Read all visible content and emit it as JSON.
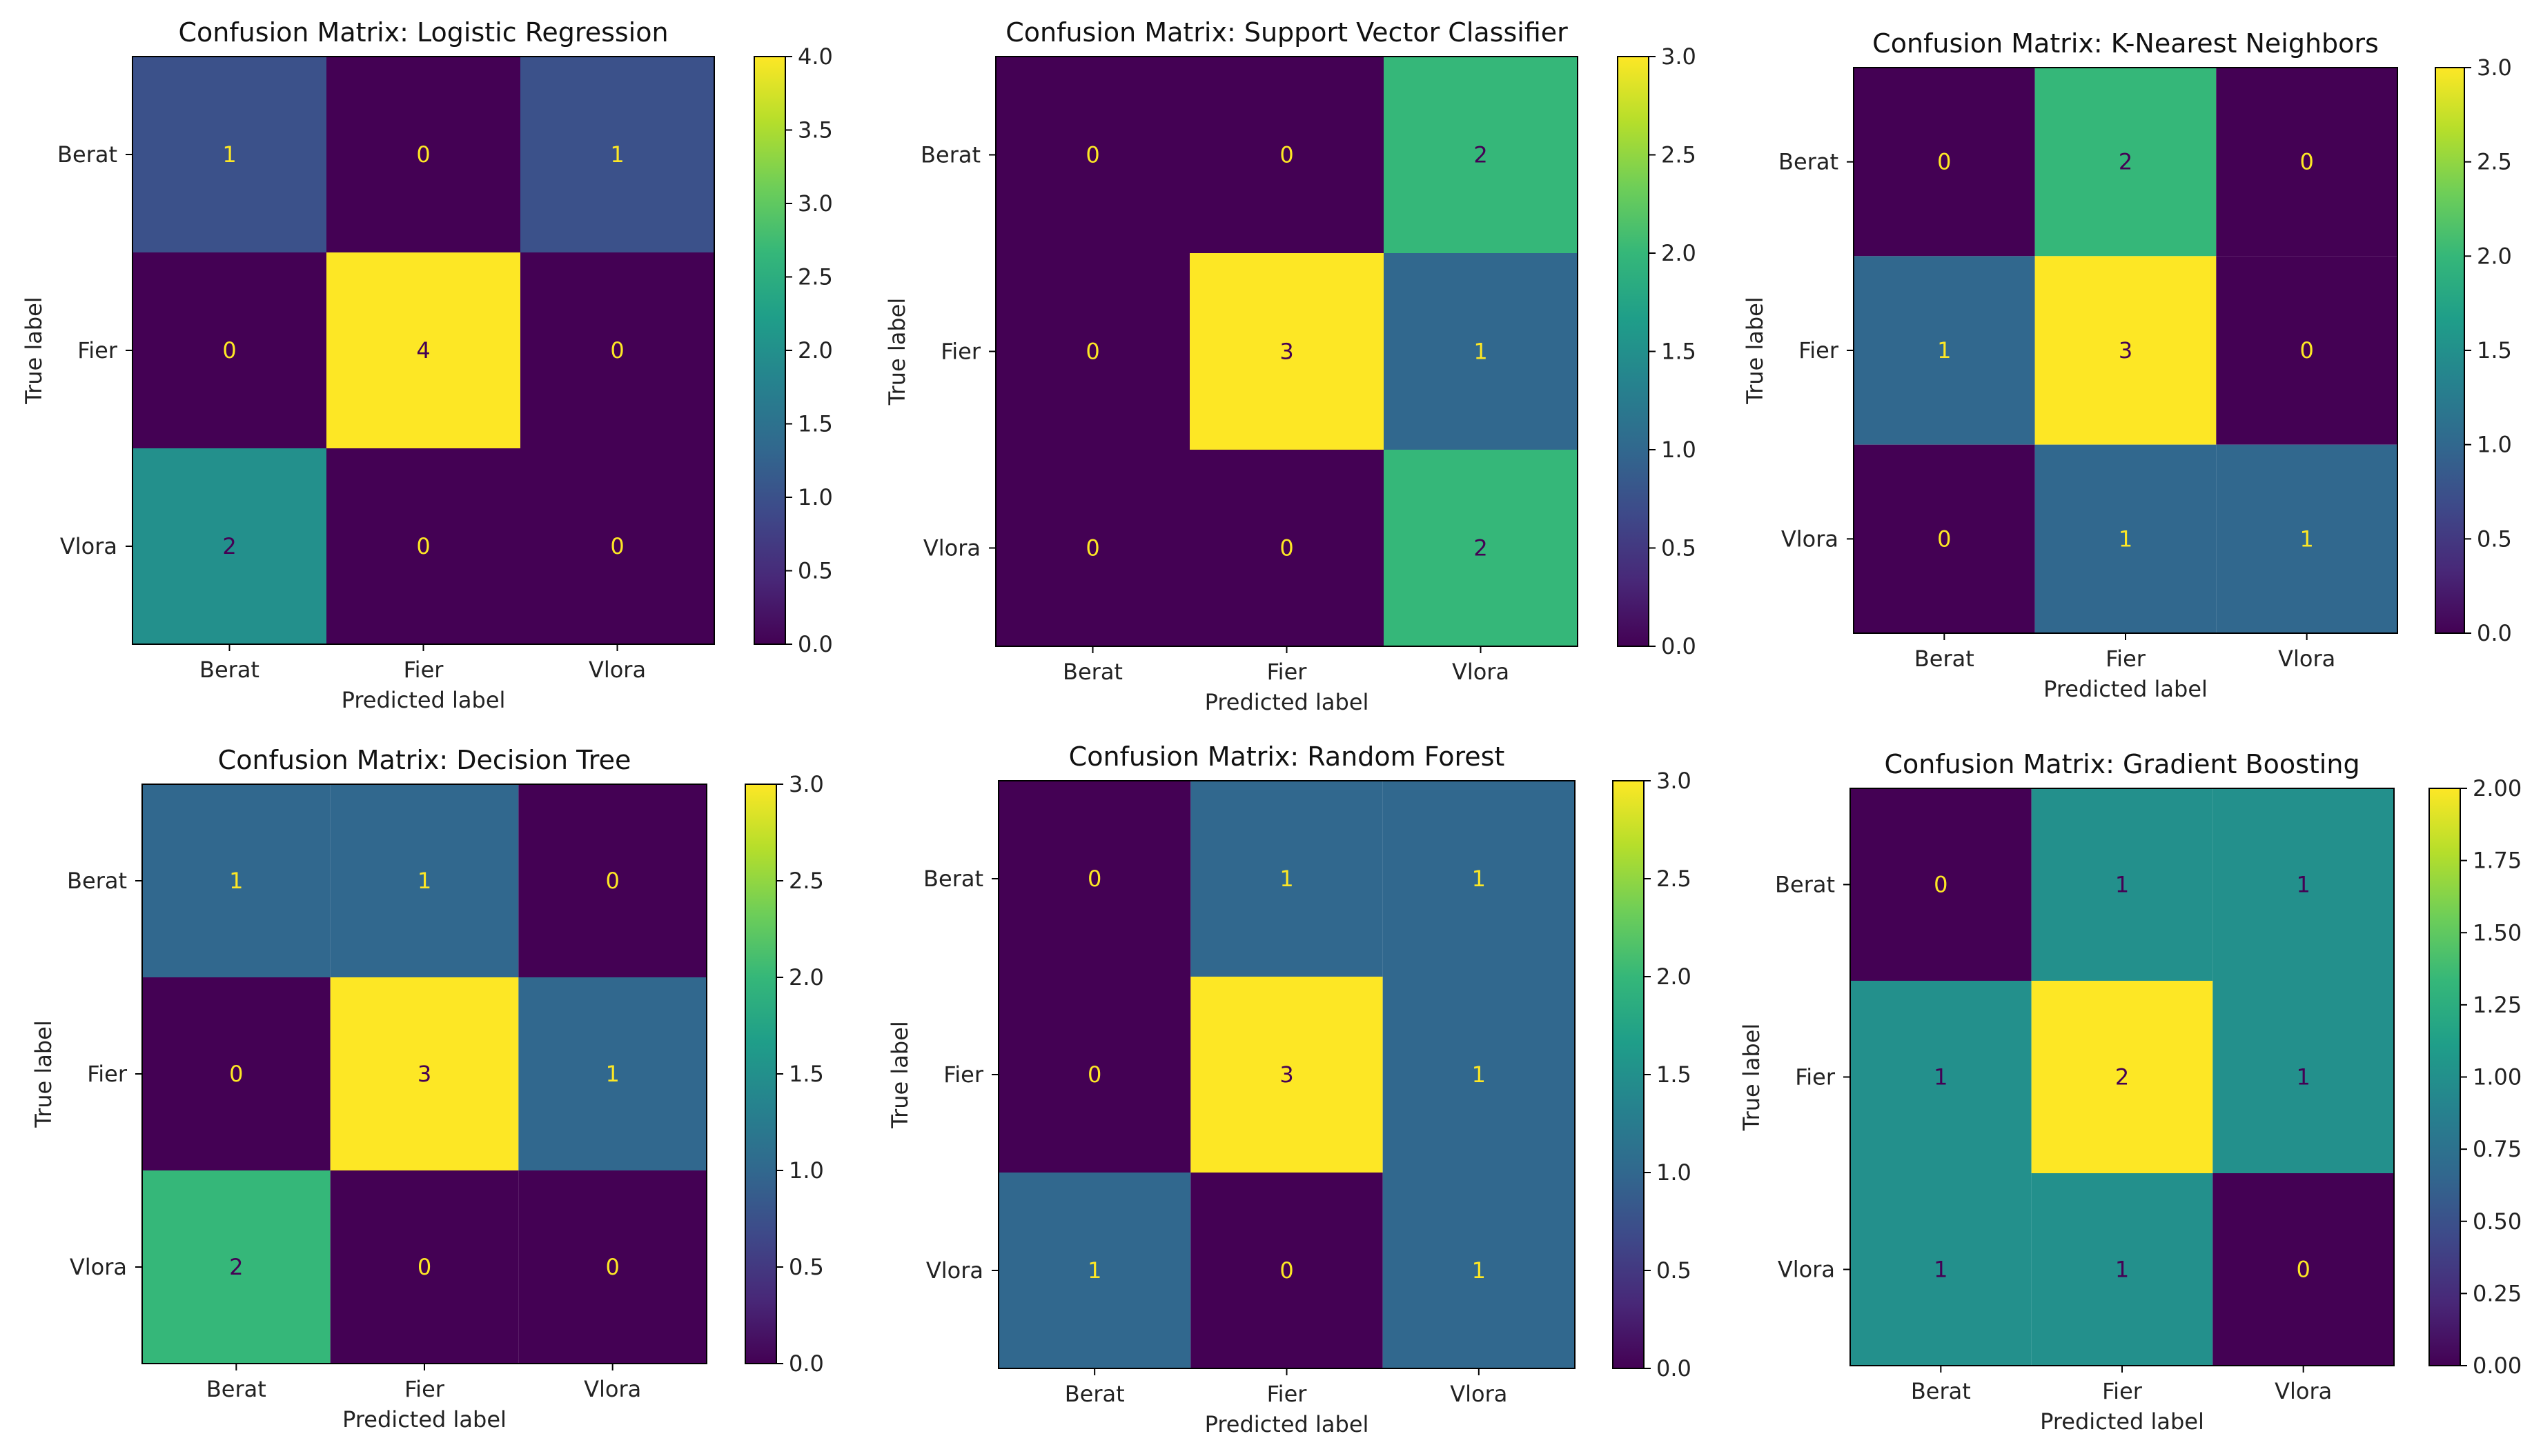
{
  "chart_data": [
    {
      "type": "heatmap",
      "title": "Confusion Matrix: Logistic Regression",
      "xlabel": "Predicted label",
      "ylabel": "True label",
      "x_categories": [
        "Berat",
        "Fier",
        "Vlora"
      ],
      "y_categories": [
        "Berat",
        "Fier",
        "Vlora"
      ],
      "values": [
        [
          1,
          0,
          1
        ],
        [
          0,
          4,
          0
        ],
        [
          2,
          0,
          0
        ]
      ],
      "colorbar": {
        "range": [
          0,
          4
        ],
        "ticks": [
          "0.0",
          "0.5",
          "1.0",
          "1.5",
          "2.0",
          "2.5",
          "3.0",
          "3.5",
          "4.0"
        ]
      },
      "colormap": "viridis"
    },
    {
      "type": "heatmap",
      "title": "Confusion Matrix: Support Vector Classifier",
      "xlabel": "Predicted label",
      "ylabel": "True label",
      "x_categories": [
        "Berat",
        "Fier",
        "Vlora"
      ],
      "y_categories": [
        "Berat",
        "Fier",
        "Vlora"
      ],
      "values": [
        [
          0,
          0,
          2
        ],
        [
          0,
          3,
          1
        ],
        [
          0,
          0,
          2
        ]
      ],
      "colorbar": {
        "range": [
          0,
          3
        ],
        "ticks": [
          "0.0",
          "0.5",
          "1.0",
          "1.5",
          "2.0",
          "2.5",
          "3.0"
        ]
      },
      "colormap": "viridis"
    },
    {
      "type": "heatmap",
      "title": "Confusion Matrix: K-Nearest Neighbors",
      "xlabel": "Predicted label",
      "ylabel": "True label",
      "x_categories": [
        "Berat",
        "Fier",
        "Vlora"
      ],
      "y_categories": [
        "Berat",
        "Fier",
        "Vlora"
      ],
      "values": [
        [
          0,
          2,
          0
        ],
        [
          1,
          3,
          0
        ],
        [
          0,
          1,
          1
        ]
      ],
      "colorbar": {
        "range": [
          0,
          3
        ],
        "ticks": [
          "0.0",
          "0.5",
          "1.0",
          "1.5",
          "2.0",
          "2.5",
          "3.0"
        ]
      },
      "colormap": "viridis"
    },
    {
      "type": "heatmap",
      "title": "Confusion Matrix: Decision Tree",
      "xlabel": "Predicted label",
      "ylabel": "True label",
      "x_categories": [
        "Berat",
        "Fier",
        "Vlora"
      ],
      "y_categories": [
        "Berat",
        "Fier",
        "Vlora"
      ],
      "values": [
        [
          1,
          1,
          0
        ],
        [
          0,
          3,
          1
        ],
        [
          2,
          0,
          0
        ]
      ],
      "colorbar": {
        "range": [
          0,
          3
        ],
        "ticks": [
          "0.0",
          "0.5",
          "1.0",
          "1.5",
          "2.0",
          "2.5",
          "3.0"
        ]
      },
      "colormap": "viridis"
    },
    {
      "type": "heatmap",
      "title": "Confusion Matrix: Random Forest",
      "xlabel": "Predicted label",
      "ylabel": "True label",
      "x_categories": [
        "Berat",
        "Fier",
        "Vlora"
      ],
      "y_categories": [
        "Berat",
        "Fier",
        "Vlora"
      ],
      "values": [
        [
          0,
          1,
          1
        ],
        [
          0,
          3,
          1
        ],
        [
          1,
          0,
          1
        ]
      ],
      "colorbar": {
        "range": [
          0,
          3
        ],
        "ticks": [
          "0.0",
          "0.5",
          "1.0",
          "1.5",
          "2.0",
          "2.5",
          "3.0"
        ]
      },
      "colormap": "viridis"
    },
    {
      "type": "heatmap",
      "title": "Confusion Matrix: Gradient Boosting",
      "xlabel": "Predicted label",
      "ylabel": "True label",
      "x_categories": [
        "Berat",
        "Fier",
        "Vlora"
      ],
      "y_categories": [
        "Berat",
        "Fier",
        "Vlora"
      ],
      "values": [
        [
          0,
          1,
          1
        ],
        [
          1,
          2,
          1
        ],
        [
          1,
          1,
          0
        ]
      ],
      "colorbar": {
        "range": [
          0,
          2
        ],
        "ticks": [
          "0.00",
          "0.25",
          "0.50",
          "0.75",
          "1.00",
          "1.25",
          "1.50",
          "1.75",
          "2.00"
        ]
      },
      "colormap": "viridis"
    }
  ]
}
